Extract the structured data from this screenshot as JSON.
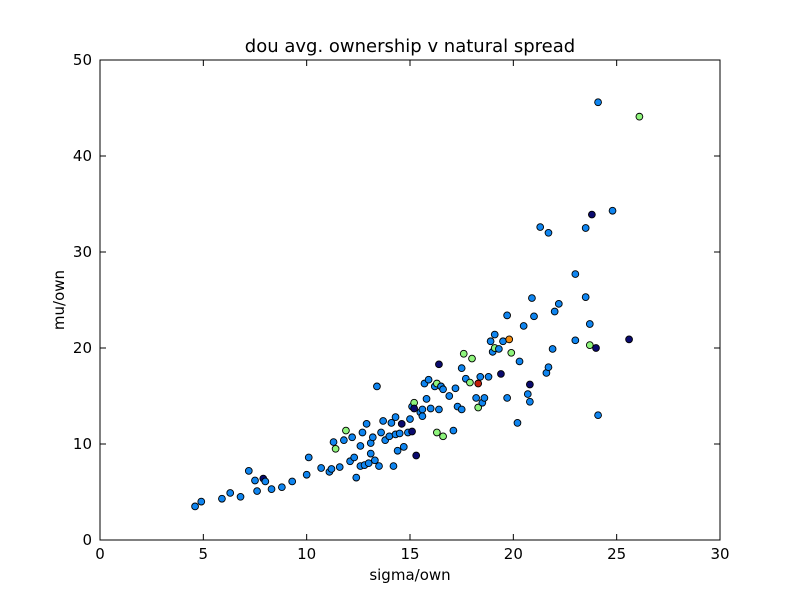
{
  "chart_data": {
    "type": "scatter",
    "title": "dou avg. ownership v natural spread",
    "xlabel": "sigma/own",
    "ylabel": "mu/own",
    "xlim": [
      0,
      30
    ],
    "ylim": [
      0,
      50
    ],
    "xticks": [
      0,
      5,
      10,
      15,
      20,
      25,
      30
    ],
    "yticks": [
      0,
      10,
      20,
      30,
      40,
      50
    ],
    "grid": false,
    "colors": {
      "blue": "#0f85f0",
      "navy": "#0a0a6e",
      "lightgreen": "#8ef47c",
      "orange": "#f08a10",
      "red": "#c21e0a",
      "marker_edge": "#000000"
    },
    "points": [
      {
        "x": 4.6,
        "y": 3.5,
        "c": "blue"
      },
      {
        "x": 4.9,
        "y": 4.0,
        "c": "blue"
      },
      {
        "x": 5.9,
        "y": 4.3,
        "c": "blue"
      },
      {
        "x": 6.3,
        "y": 4.9,
        "c": "blue"
      },
      {
        "x": 6.8,
        "y": 4.5,
        "c": "blue"
      },
      {
        "x": 7.2,
        "y": 7.2,
        "c": "blue"
      },
      {
        "x": 7.5,
        "y": 6.2,
        "c": "blue"
      },
      {
        "x": 7.6,
        "y": 5.1,
        "c": "blue"
      },
      {
        "x": 7.9,
        "y": 6.4,
        "c": "navy"
      },
      {
        "x": 8.0,
        "y": 6.1,
        "c": "blue"
      },
      {
        "x": 8.3,
        "y": 5.3,
        "c": "blue"
      },
      {
        "x": 8.8,
        "y": 5.5,
        "c": "blue"
      },
      {
        "x": 9.3,
        "y": 6.1,
        "c": "blue"
      },
      {
        "x": 10.0,
        "y": 6.8,
        "c": "blue"
      },
      {
        "x": 10.1,
        "y": 8.6,
        "c": "blue"
      },
      {
        "x": 10.7,
        "y": 7.5,
        "c": "blue"
      },
      {
        "x": 11.1,
        "y": 7.1,
        "c": "blue"
      },
      {
        "x": 11.2,
        "y": 7.4,
        "c": "blue"
      },
      {
        "x": 11.3,
        "y": 10.2,
        "c": "blue"
      },
      {
        "x": 11.4,
        "y": 9.5,
        "c": "lightgreen"
      },
      {
        "x": 11.6,
        "y": 7.6,
        "c": "blue"
      },
      {
        "x": 11.8,
        "y": 10.4,
        "c": "blue"
      },
      {
        "x": 11.9,
        "y": 11.4,
        "c": "lightgreen"
      },
      {
        "x": 12.1,
        "y": 8.2,
        "c": "blue"
      },
      {
        "x": 12.2,
        "y": 10.7,
        "c": "blue"
      },
      {
        "x": 12.3,
        "y": 8.6,
        "c": "blue"
      },
      {
        "x": 12.4,
        "y": 6.5,
        "c": "blue"
      },
      {
        "x": 12.6,
        "y": 9.8,
        "c": "blue"
      },
      {
        "x": 12.6,
        "y": 7.7,
        "c": "blue"
      },
      {
        "x": 12.7,
        "y": 11.2,
        "c": "blue"
      },
      {
        "x": 12.8,
        "y": 7.8,
        "c": "blue"
      },
      {
        "x": 12.9,
        "y": 12.1,
        "c": "blue"
      },
      {
        "x": 13.0,
        "y": 8.0,
        "c": "blue"
      },
      {
        "x": 13.1,
        "y": 9.0,
        "c": "blue"
      },
      {
        "x": 13.1,
        "y": 10.1,
        "c": "blue"
      },
      {
        "x": 13.2,
        "y": 10.7,
        "c": "blue"
      },
      {
        "x": 13.3,
        "y": 8.3,
        "c": "blue"
      },
      {
        "x": 13.4,
        "y": 16.0,
        "c": "blue"
      },
      {
        "x": 13.5,
        "y": 7.7,
        "c": "blue"
      },
      {
        "x": 13.6,
        "y": 11.2,
        "c": "blue"
      },
      {
        "x": 13.7,
        "y": 12.4,
        "c": "blue"
      },
      {
        "x": 13.8,
        "y": 10.4,
        "c": "blue"
      },
      {
        "x": 14.0,
        "y": 10.8,
        "c": "blue"
      },
      {
        "x": 14.1,
        "y": 12.2,
        "c": "blue"
      },
      {
        "x": 14.2,
        "y": 7.7,
        "c": "blue"
      },
      {
        "x": 14.3,
        "y": 11.0,
        "c": "blue"
      },
      {
        "x": 14.4,
        "y": 9.3,
        "c": "blue"
      },
      {
        "x": 14.3,
        "y": 12.8,
        "c": "blue"
      },
      {
        "x": 14.5,
        "y": 11.1,
        "c": "blue"
      },
      {
        "x": 14.6,
        "y": 12.1,
        "c": "navy"
      },
      {
        "x": 14.7,
        "y": 9.7,
        "c": "blue"
      },
      {
        "x": 14.9,
        "y": 11.2,
        "c": "blue"
      },
      {
        "x": 15.0,
        "y": 12.6,
        "c": "blue"
      },
      {
        "x": 15.1,
        "y": 11.3,
        "c": "navy"
      },
      {
        "x": 15.1,
        "y": 13.9,
        "c": "blue"
      },
      {
        "x": 15.2,
        "y": 14.3,
        "c": "lightgreen"
      },
      {
        "x": 15.2,
        "y": 13.7,
        "c": "navy"
      },
      {
        "x": 15.3,
        "y": 8.8,
        "c": "navy"
      },
      {
        "x": 15.5,
        "y": 13.3,
        "c": "blue"
      },
      {
        "x": 15.6,
        "y": 12.9,
        "c": "blue"
      },
      {
        "x": 15.6,
        "y": 13.6,
        "c": "blue"
      },
      {
        "x": 15.7,
        "y": 16.3,
        "c": "blue"
      },
      {
        "x": 15.8,
        "y": 14.7,
        "c": "blue"
      },
      {
        "x": 15.9,
        "y": 16.7,
        "c": "blue"
      },
      {
        "x": 16.0,
        "y": 13.7,
        "c": "blue"
      },
      {
        "x": 16.2,
        "y": 16.0,
        "c": "blue"
      },
      {
        "x": 16.3,
        "y": 11.2,
        "c": "lightgreen"
      },
      {
        "x": 16.3,
        "y": 16.3,
        "c": "lightgreen"
      },
      {
        "x": 16.4,
        "y": 13.6,
        "c": "blue"
      },
      {
        "x": 16.4,
        "y": 18.3,
        "c": "navy"
      },
      {
        "x": 16.5,
        "y": 16.0,
        "c": "blue"
      },
      {
        "x": 16.6,
        "y": 15.7,
        "c": "blue"
      },
      {
        "x": 16.6,
        "y": 10.8,
        "c": "lightgreen"
      },
      {
        "x": 16.9,
        "y": 15.0,
        "c": "blue"
      },
      {
        "x": 17.1,
        "y": 11.4,
        "c": "blue"
      },
      {
        "x": 17.2,
        "y": 15.8,
        "c": "blue"
      },
      {
        "x": 17.3,
        "y": 13.9,
        "c": "blue"
      },
      {
        "x": 17.5,
        "y": 17.9,
        "c": "blue"
      },
      {
        "x": 17.5,
        "y": 13.6,
        "c": "blue"
      },
      {
        "x": 17.6,
        "y": 19.4,
        "c": "lightgreen"
      },
      {
        "x": 17.7,
        "y": 16.8,
        "c": "blue"
      },
      {
        "x": 17.9,
        "y": 16.4,
        "c": "lightgreen"
      },
      {
        "x": 18.0,
        "y": 18.9,
        "c": "lightgreen"
      },
      {
        "x": 18.2,
        "y": 14.8,
        "c": "blue"
      },
      {
        "x": 18.3,
        "y": 16.3,
        "c": "red"
      },
      {
        "x": 18.3,
        "y": 13.8,
        "c": "lightgreen"
      },
      {
        "x": 18.4,
        "y": 17.0,
        "c": "blue"
      },
      {
        "x": 18.5,
        "y": 14.3,
        "c": "blue"
      },
      {
        "x": 18.6,
        "y": 14.8,
        "c": "blue"
      },
      {
        "x": 18.8,
        "y": 17.0,
        "c": "blue"
      },
      {
        "x": 18.9,
        "y": 20.7,
        "c": "blue"
      },
      {
        "x": 19.0,
        "y": 19.6,
        "c": "blue"
      },
      {
        "x": 19.1,
        "y": 21.4,
        "c": "blue"
      },
      {
        "x": 19.1,
        "y": 20.0,
        "c": "lightgreen"
      },
      {
        "x": 19.3,
        "y": 19.9,
        "c": "blue"
      },
      {
        "x": 19.4,
        "y": 17.3,
        "c": "navy"
      },
      {
        "x": 19.5,
        "y": 20.7,
        "c": "blue"
      },
      {
        "x": 19.7,
        "y": 23.4,
        "c": "blue"
      },
      {
        "x": 19.7,
        "y": 14.8,
        "c": "blue"
      },
      {
        "x": 19.8,
        "y": 20.9,
        "c": "orange"
      },
      {
        "x": 19.9,
        "y": 19.5,
        "c": "lightgreen"
      },
      {
        "x": 20.2,
        "y": 12.2,
        "c": "blue"
      },
      {
        "x": 20.3,
        "y": 18.6,
        "c": "blue"
      },
      {
        "x": 20.5,
        "y": 22.3,
        "c": "blue"
      },
      {
        "x": 20.7,
        "y": 15.2,
        "c": "blue"
      },
      {
        "x": 20.8,
        "y": 14.4,
        "c": "blue"
      },
      {
        "x": 20.8,
        "y": 16.2,
        "c": "navy"
      },
      {
        "x": 20.9,
        "y": 25.2,
        "c": "blue"
      },
      {
        "x": 21.0,
        "y": 23.3,
        "c": "blue"
      },
      {
        "x": 21.3,
        "y": 32.6,
        "c": "blue"
      },
      {
        "x": 21.6,
        "y": 17.4,
        "c": "blue"
      },
      {
        "x": 21.7,
        "y": 18.0,
        "c": "blue"
      },
      {
        "x": 21.7,
        "y": 32.0,
        "c": "blue"
      },
      {
        "x": 21.9,
        "y": 19.9,
        "c": "blue"
      },
      {
        "x": 22.0,
        "y": 23.8,
        "c": "blue"
      },
      {
        "x": 22.2,
        "y": 24.6,
        "c": "blue"
      },
      {
        "x": 23.0,
        "y": 20.8,
        "c": "blue"
      },
      {
        "x": 23.0,
        "y": 27.7,
        "c": "blue"
      },
      {
        "x": 23.5,
        "y": 32.5,
        "c": "blue"
      },
      {
        "x": 23.5,
        "y": 25.3,
        "c": "blue"
      },
      {
        "x": 23.7,
        "y": 20.3,
        "c": "lightgreen"
      },
      {
        "x": 23.7,
        "y": 22.5,
        "c": "blue"
      },
      {
        "x": 23.8,
        "y": 33.9,
        "c": "navy"
      },
      {
        "x": 24.0,
        "y": 20.0,
        "c": "navy"
      },
      {
        "x": 24.1,
        "y": 45.6,
        "c": "blue"
      },
      {
        "x": 24.1,
        "y": 13.0,
        "c": "blue"
      },
      {
        "x": 24.8,
        "y": 34.3,
        "c": "blue"
      },
      {
        "x": 25.6,
        "y": 20.9,
        "c": "navy"
      },
      {
        "x": 26.1,
        "y": 44.1,
        "c": "lightgreen"
      }
    ]
  }
}
